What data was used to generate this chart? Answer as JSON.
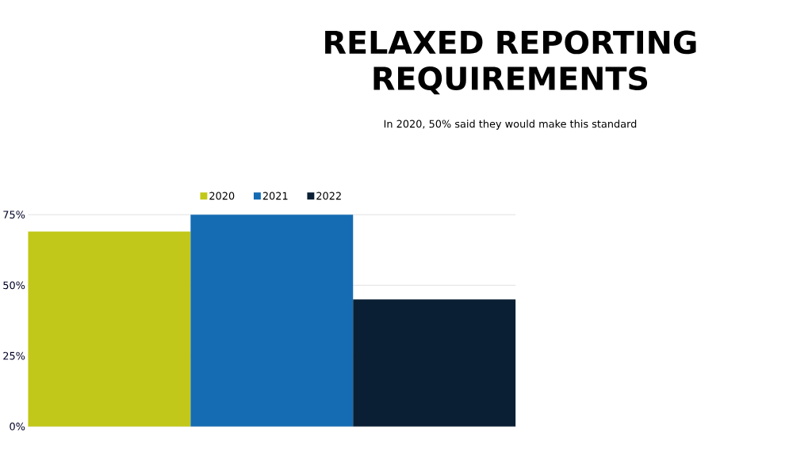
{
  "chart_data": {
    "type": "bar",
    "title": "RELAXED REPORTING REQUIREMENTS",
    "subtitle": "In 2020, 50% said they would make this standard",
    "categories": [
      null
    ],
    "series": [
      {
        "name": "2020",
        "color": "#c2c819",
        "values": [
          69
        ]
      },
      {
        "name": "2021",
        "color": "#156cb3",
        "values": [
          75
        ]
      },
      {
        "name": "2022",
        "color": "#0a1f33",
        "values": [
          45
        ]
      }
    ],
    "ylim": [
      0,
      75
    ],
    "yticks": [
      {
        "value": 0,
        "label": "0%"
      },
      {
        "value": 25,
        "label": "25%"
      },
      {
        "value": 50,
        "label": "50%"
      },
      {
        "value": 75,
        "label": "75%"
      }
    ],
    "grid": "y",
    "legend": "top"
  }
}
